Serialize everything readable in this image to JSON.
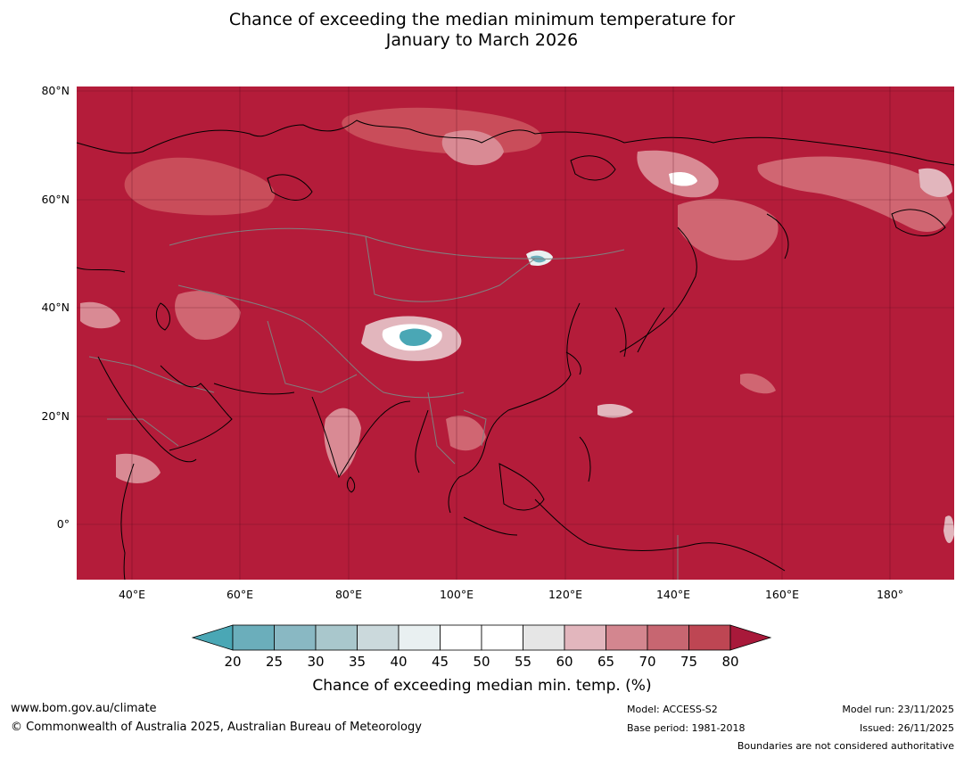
{
  "title": {
    "line1": "Chance of exceeding the median minimum temperature for",
    "line2": "January to March 2026"
  },
  "map": {
    "fill_color": "#b41c3a",
    "region": "Asia",
    "lat_labels": [
      "80°N",
      "60°N",
      "40°N",
      "20°N",
      "0°"
    ],
    "lon_labels": [
      "40°E",
      "60°E",
      "80°E",
      "100°E",
      "120°E",
      "140°E",
      "160°E",
      "180°"
    ],
    "lat_range": [
      -10,
      81
    ],
    "lon_range": [
      30,
      192
    ]
  },
  "colorbar": {
    "ticks": [
      "20",
      "25",
      "30",
      "35",
      "40",
      "45",
      "50",
      "55",
      "60",
      "65",
      "70",
      "75",
      "80"
    ],
    "colors": [
      "#6baebb",
      "#89b8c3",
      "#a9c7cc",
      "#cbd9dc",
      "#e9f0f1",
      "#ffffff",
      "#ffffff",
      "#e6e6e6",
      "#e2b6bd",
      "#d3868f",
      "#c76671",
      "#be4653"
    ],
    "under_color": "#4aa7b5",
    "over_color": "#a8193a",
    "label": "Chance of exceeding median min. temp. (%)"
  },
  "footer": {
    "url": "www.bom.gov.au/climate",
    "copyright": "© Commonwealth of Australia 2025, Australian Bureau of Meteorology",
    "model": "Model: ACCESS-S2",
    "base_period": "Base period: 1981-2018",
    "model_run": "Model run: 23/11/2025",
    "issued": "Issued: 26/11/2025",
    "boundaries": "Boundaries are not considered authoritative"
  }
}
